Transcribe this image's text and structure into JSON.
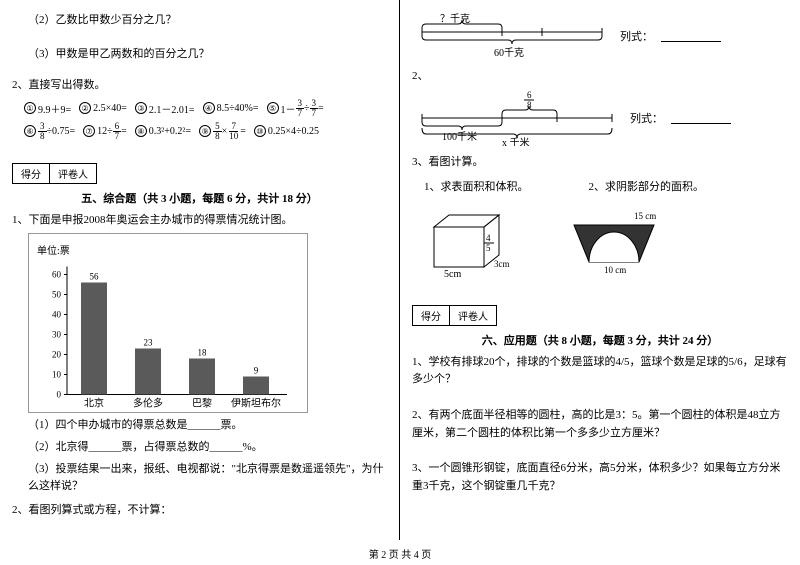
{
  "left": {
    "q2": "（2）乙数比甲数少百分之几？",
    "q3": "（3）甲数是甲乙两数和的百分之几？",
    "p2_title": "2、直接写出得数。",
    "eqs_row1": [
      {
        "n": "①",
        "t": "9.9＋9="
      },
      {
        "n": "②",
        "t": "2.5×40="
      },
      {
        "n": "③",
        "t": " 2.1－2.01="
      },
      {
        "n": "④",
        "t": " 8.5÷40%="
      },
      {
        "n": "⑤",
        "t": ""
      }
    ],
    "eq5_pre": "1－",
    "eq5_f1n": "3",
    "eq5_f1d": "7",
    "eq5_mid": "÷",
    "eq5_f2n": "3",
    "eq5_f2d": "7",
    "eq5_post": "=",
    "eqs_row2": [
      {
        "n": "⑥",
        "pre": "",
        "fn": "3",
        "fd": "8",
        "post": "÷0.75="
      },
      {
        "n": "⑦",
        "pre": " 12÷",
        "fn": "6",
        "fd": "7",
        "post": "="
      },
      {
        "n": "⑧",
        "pre": " 0.3²+0.2²=",
        "fn": "",
        "fd": "",
        "post": ""
      },
      {
        "n": "⑨",
        "pre": "",
        "fn": "5",
        "fd": "8",
        "mid": "×",
        "f2n": "7",
        "f2d": "10",
        "post": "="
      },
      {
        "n": "⑩",
        "pre": " 0.25×4÷0.25",
        "fn": "",
        "fd": "",
        "post": ""
      }
    ],
    "score_label1": "得分",
    "score_label2": "评卷人",
    "section5_title": "五、综合题（共 3 小题，每题 6 分，共计 18 分）",
    "chart_intro": "1、下面是申报2008年奥运会主办城市的得票情况统计图。",
    "chart_unit": "单位:票",
    "chart": {
      "ylim": 60,
      "ytick": 10,
      "categories": [
        "北京",
        "多伦多",
        "巴黎",
        "伊斯坦布尔"
      ],
      "values": [
        56,
        23,
        18,
        9
      ],
      "bar_color": "#5a5a5a"
    },
    "sub1": "（1）四个申办城市的得票总数是______票。",
    "sub2": "（2）北京得______票，占得票总数的______%。",
    "sub3": "（3）投票结果一出来，报纸、电视都说：\"北京得票是数遥遥领先\"，为什么这样说？",
    "p2b": "2、看图列算式或方程，不计算："
  },
  "right": {
    "d1_top": "？千克",
    "d1_bottom": "60千克",
    "formula_label": "列式：",
    "p2": "2、",
    "d2_top_n": "6",
    "d2_top_d": "8",
    "d2_left": "100千米",
    "d2_bottom": "x 千米",
    "p3": "3、看图计算。",
    "p3a": "1、求表面积和体积。",
    "p3b": "2、求阴影部分的面积。",
    "cube_h_n": "4",
    "cube_h_d": "5",
    "cube_w": "5cm",
    "cube_d": "3cm",
    "trap_top": "15 cm",
    "trap_bottom": "10 cm",
    "score_label1": "得分",
    "score_label2": "评卷人",
    "section6_title": "六、应用题（共 8 小题，每题 3 分，共计 24 分）",
    "app1": "1、学校有排球20个，排球的个数是篮球的4/5，篮球个数是足球的5/6，足球有多少个？",
    "app2": "2、有两个底面半径相等的圆柱，高的比是3：5。第一个圆柱的体积是48立方厘米，第二个圆柱的体积比第一个多多少立方厘米？",
    "app3": "3、一个圆锥形钢锭，底面直径6分米，高5分米，体积多少？如果每立方分米重3千克，这个钢锭重几千克？"
  },
  "footer": "第 2 页 共 4 页"
}
